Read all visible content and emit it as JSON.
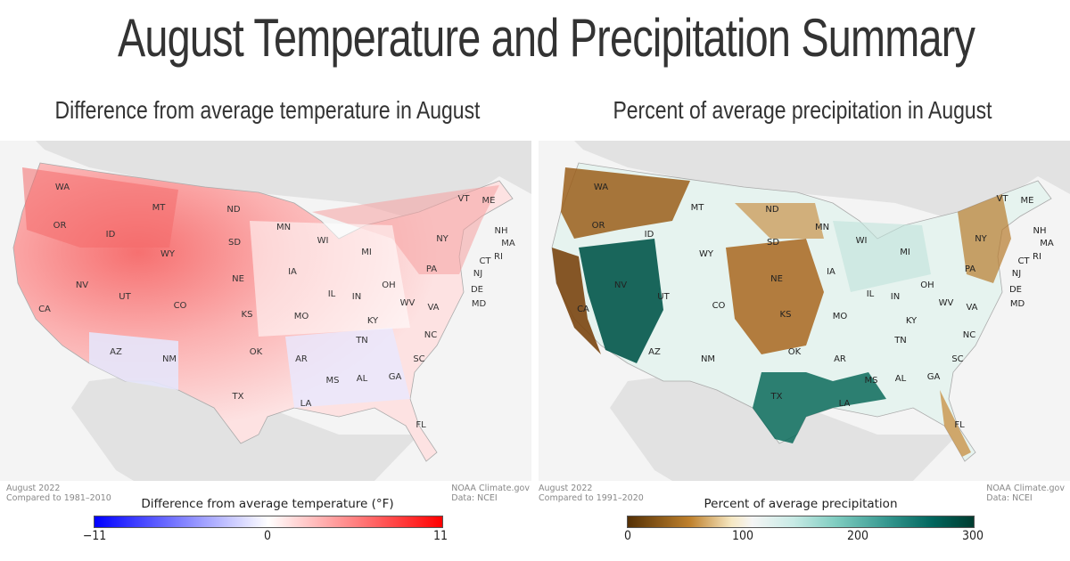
{
  "title": "August Temperature and Precipitation Summary",
  "colors": {
    "temp_low": "#0000ff",
    "temp_mid": "#ffffff",
    "temp_high": "#ff0000",
    "precip_dry": "#543005",
    "precip_mid": "#f5f5f5",
    "precip_wet": "#003c30",
    "background": "#f4f4f4",
    "land_outside": "#e2e2e2"
  },
  "maps": [
    {
      "id": "temperature",
      "subtitle": "Difference from average temperature in August",
      "footer_left": [
        "August 2022",
        "Compared to 1981–2010"
      ],
      "footer_right": [
        "NOAA Climate.gov",
        "Data: NCEI"
      ],
      "legend_title": "Difference from average temperature (°F)",
      "legend_ticks": [
        "−11",
        "0",
        "11"
      ],
      "legend_range": [
        -11,
        11
      ],
      "state_labels": [
        "WA",
        "OR",
        "CA",
        "ID",
        "NV",
        "MT",
        "WY",
        "UT",
        "AZ",
        "CO",
        "NM",
        "ND",
        "SD",
        "NE",
        "KS",
        "OK",
        "TX",
        "MN",
        "IA",
        "MO",
        "AR",
        "LA",
        "WI",
        "IL",
        "MS",
        "MI",
        "IN",
        "KY",
        "TN",
        "AL",
        "OH",
        "WV",
        "VA",
        "NC",
        "SC",
        "GA",
        "FL",
        "PA",
        "NY",
        "VT",
        "ME",
        "NH",
        "MA",
        "RI",
        "CT",
        "NJ",
        "DE",
        "MD"
      ]
    },
    {
      "id": "precipitation",
      "subtitle": "Percent of average precipitation in August",
      "footer_left": [
        "August 2022",
        "Compared to 1991–2020"
      ],
      "footer_right": [
        "NOAA Climate.gov",
        "Data: NCEI"
      ],
      "legend_title": "Percent of average precipitation",
      "legend_ticks": [
        "0",
        "100",
        "200",
        "300"
      ],
      "legend_range": [
        0,
        300
      ],
      "state_labels": [
        "WA",
        "OR",
        "CA",
        "ID",
        "NV",
        "MT",
        "WY",
        "UT",
        "AZ",
        "CO",
        "NM",
        "ND",
        "SD",
        "NE",
        "KS",
        "OK",
        "TX",
        "MN",
        "IA",
        "MO",
        "AR",
        "LA",
        "WI",
        "IL",
        "MS",
        "MI",
        "IN",
        "KY",
        "TN",
        "AL",
        "OH",
        "WV",
        "VA",
        "NC",
        "SC",
        "GA",
        "FL",
        "PA",
        "NY",
        "VT",
        "ME",
        "NH",
        "MA",
        "RI",
        "CT",
        "NJ",
        "DE",
        "MD"
      ]
    }
  ]
}
